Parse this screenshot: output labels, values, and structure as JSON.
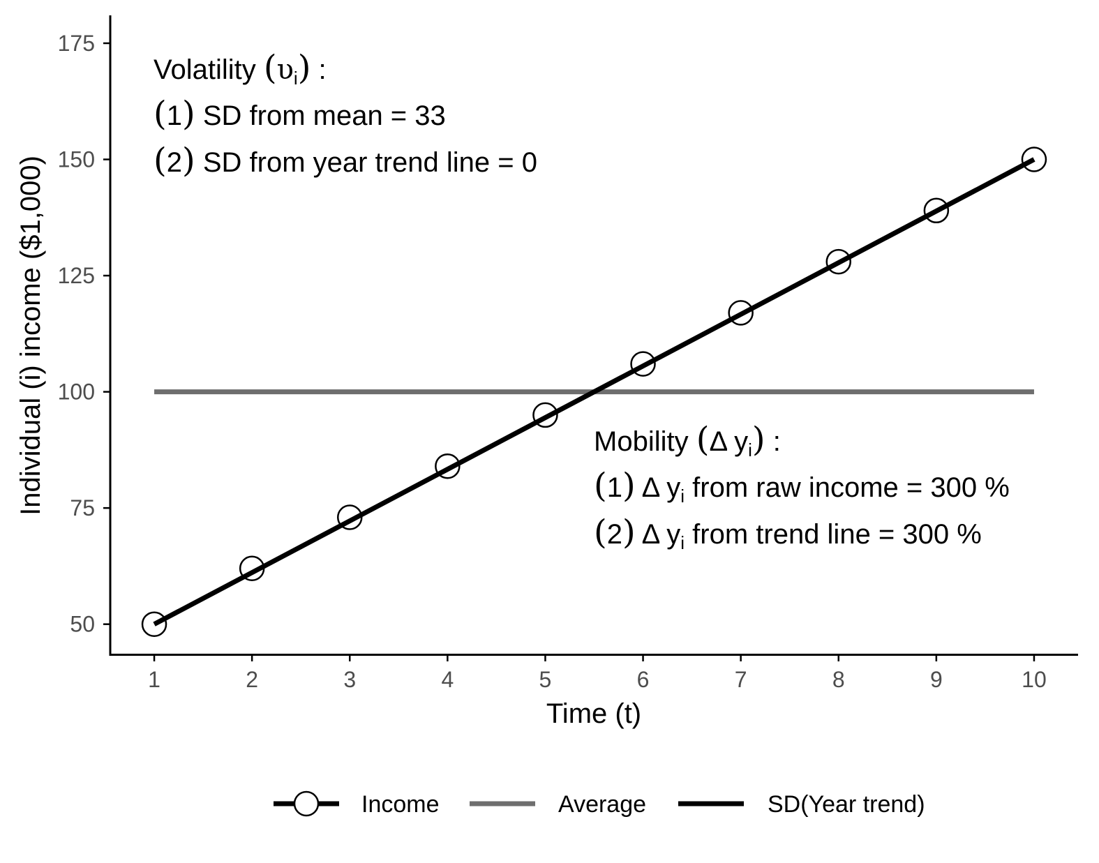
{
  "chart_data": {
    "type": "line",
    "xlabel": "Time (t)",
    "ylabel": "Individual (i) income ($1,000)",
    "xlim": [
      0.55,
      10.45
    ],
    "ylim": [
      43.5,
      181.0
    ],
    "x_ticks": [
      "1",
      "2",
      "3",
      "4",
      "5",
      "6",
      "7",
      "8",
      "9",
      "10"
    ],
    "y_ticks": [
      "50",
      "75",
      "100",
      "125",
      "150",
      "175"
    ],
    "x": [
      1,
      2,
      3,
      4,
      5,
      6,
      7,
      8,
      9,
      10
    ],
    "series": [
      {
        "name": "Income",
        "kind": "points",
        "values": [
          50,
          62,
          73,
          84,
          95,
          106,
          117,
          128,
          139,
          150
        ],
        "color": "#000000"
      },
      {
        "name": "Average",
        "kind": "hline",
        "values": [
          100,
          100
        ],
        "x": [
          1,
          10
        ],
        "color": "#6e6e6e"
      },
      {
        "name": "SD(Year trend)",
        "kind": "line",
        "values": [
          50,
          150
        ],
        "x": [
          1,
          10
        ],
        "color": "#000000"
      }
    ],
    "legend": {
      "position": "bottom",
      "items": [
        "Income",
        "Average",
        "SD(Year trend)"
      ]
    },
    "annotations": {
      "volatility": {
        "title": {
          "pre": "Volatility ",
          "sym": "υ",
          "sub": "i",
          "post": " :"
        },
        "line1": {
          "num": "1",
          "text": " SD from mean = 33"
        },
        "line2": {
          "num": "2",
          "text": " SD from year trend line = 0"
        }
      },
      "mobility": {
        "title": {
          "pre": "Mobility ",
          "sym": "Δ y",
          "sub": "i",
          "post": " :"
        },
        "line1": {
          "num": "1",
          "sym": " Δ y",
          "sub": "i",
          "text": " from raw income = 300 %"
        },
        "line2": {
          "num": "2",
          "sym": " Δ y",
          "sub": "i",
          "text": " from trend line = 300 %"
        }
      }
    },
    "grid": false
  }
}
